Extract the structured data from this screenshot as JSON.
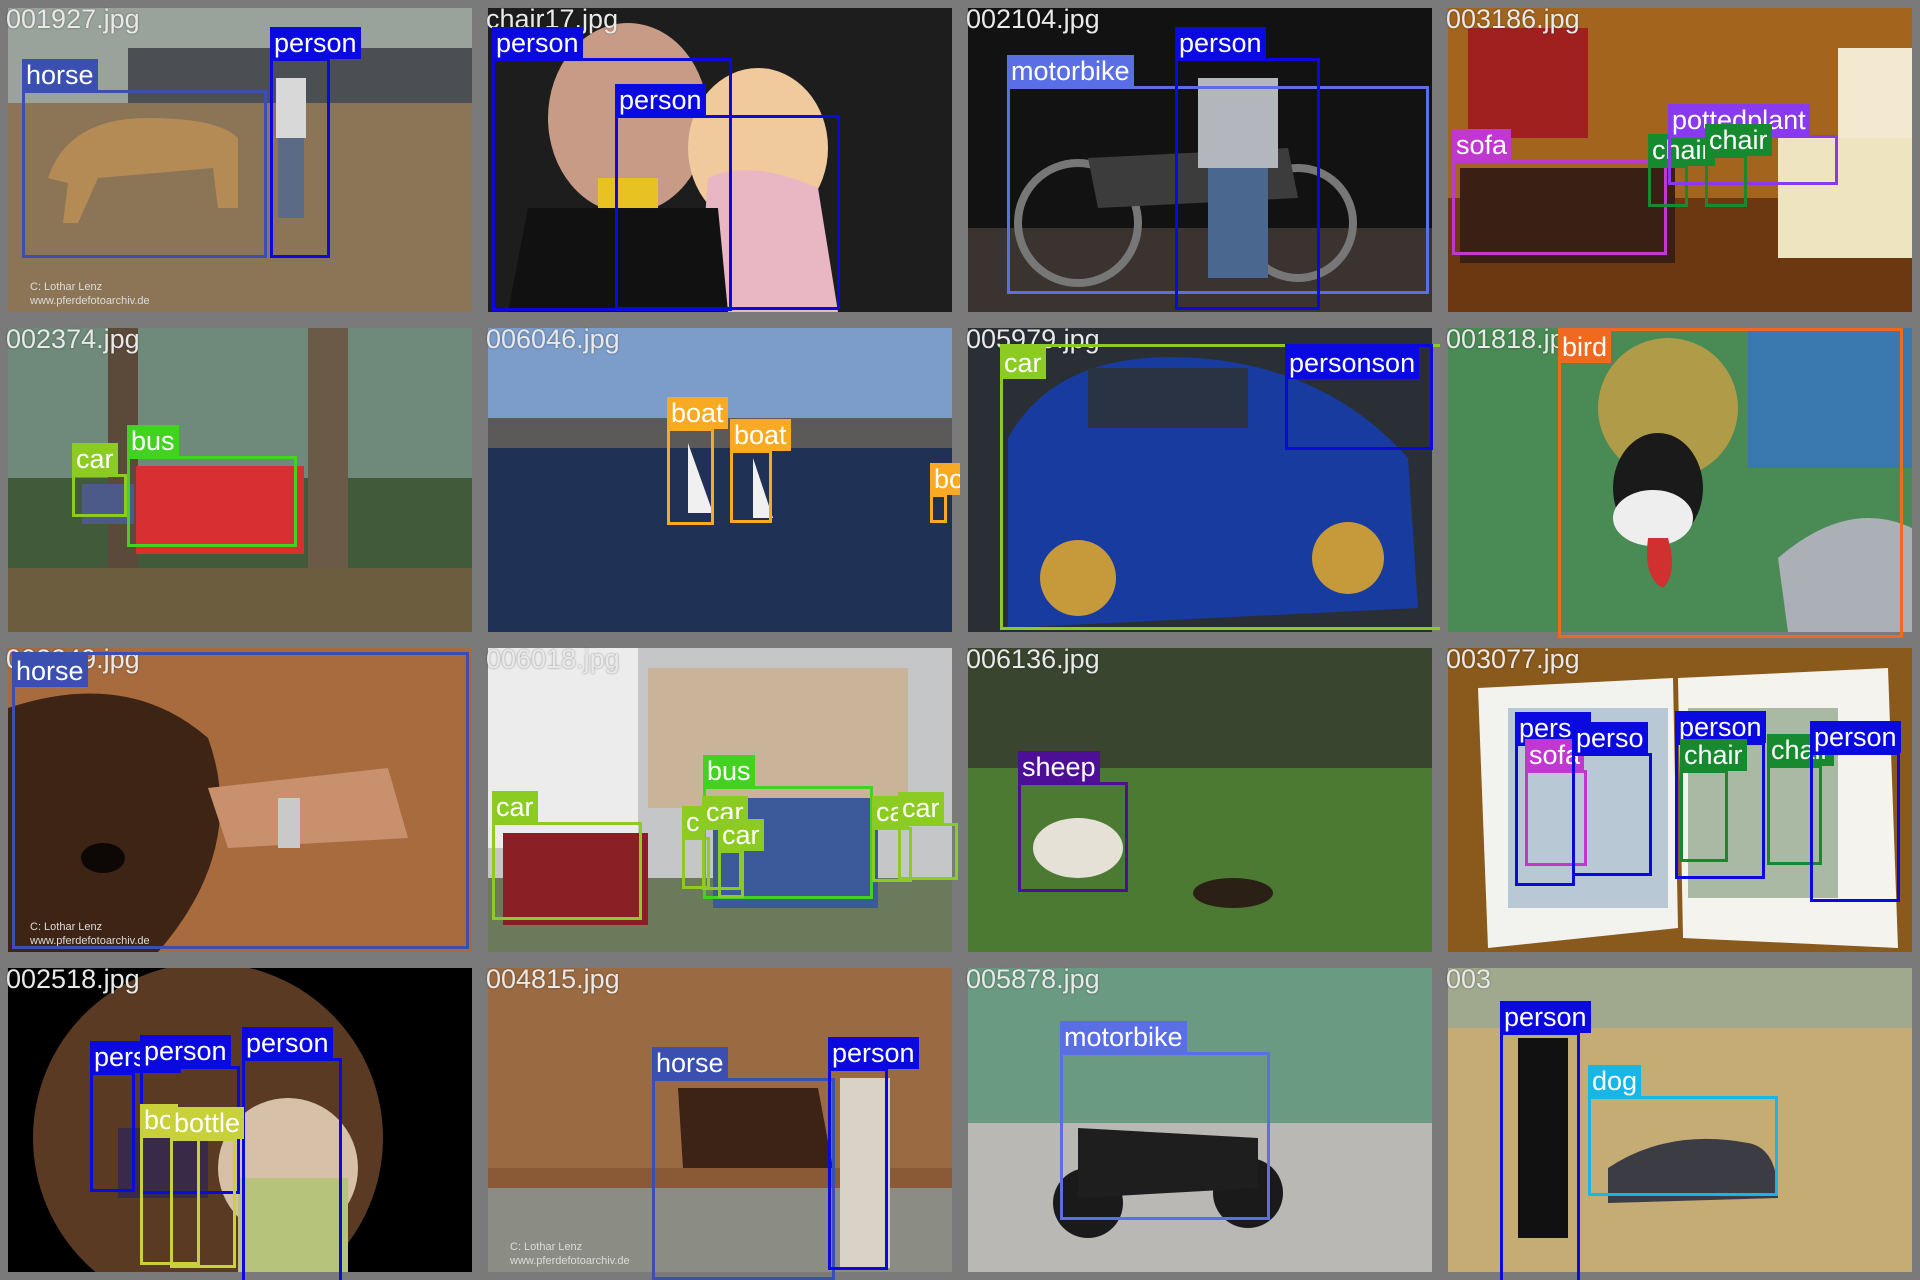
{
  "colors": {
    "person": "#0a0ae0",
    "horse": "#3a4fb0",
    "motorbike": "#5a6ee6",
    "sofa": "#c038d0",
    "chair": "#178a30",
    "pottedplant": "#8a3aee",
    "bus": "#44d222",
    "car": "#8ccc22",
    "boat": "#f7aa22",
    "bird": "#ef6a20",
    "sheep": "#4c0f96",
    "bottle": "#c8d03a",
    "dog": "#16b6e8"
  },
  "watermark": {
    "line1": "C:   Lothar Lenz",
    "line2": "www.pferdefotoarchiv.de"
  },
  "tiles": [
    {
      "filename": "001927.jpg",
      "scene": "horse-arena",
      "boxes": [
        {
          "label": "horse",
          "cls": "horse"
        },
        {
          "label": "person",
          "cls": "person"
        }
      ]
    },
    {
      "filename": "chair17.jpg",
      "scene": "man-child",
      "boxes": [
        {
          "label": "person",
          "cls": "person"
        },
        {
          "label": "person",
          "cls": "person"
        }
      ]
    },
    {
      "filename": "002104.jpg",
      "scene": "motorbike-night",
      "boxes": [
        {
          "label": "motorbike",
          "cls": "motorbike"
        },
        {
          "label": "person",
          "cls": "person"
        }
      ]
    },
    {
      "filename": "003186.jpg",
      "scene": "living-room",
      "boxes": [
        {
          "label": "sofa",
          "cls": "sofa"
        },
        {
          "label": "chair",
          "cls": "chair"
        },
        {
          "label": "pottedplant",
          "cls": "pottedplant"
        },
        {
          "label": "chair",
          "cls": "chair"
        }
      ]
    },
    {
      "filename": "002374.jpg",
      "scene": "forest-bus",
      "boxes": [
        {
          "label": "car",
          "cls": "car"
        },
        {
          "label": "bus",
          "cls": "bus"
        }
      ]
    },
    {
      "filename": "006046.jpg",
      "scene": "harbor",
      "boxes": [
        {
          "label": "boat",
          "cls": "boat"
        },
        {
          "label": "boat",
          "cls": "boat"
        },
        {
          "label": "boat",
          "cls": "boat"
        }
      ]
    },
    {
      "filename": "005979.jpg",
      "scene": "rally-car",
      "boxes": [
        {
          "label": "car",
          "cls": "car"
        },
        {
          "label": "personson",
          "cls": "person"
        }
      ]
    },
    {
      "filename": "001818.jpg",
      "scene": "crowned-crane",
      "boxes": [
        {
          "label": "bird",
          "cls": "bird"
        }
      ]
    },
    {
      "filename": "002249.jpg",
      "scene": "horse-closeup",
      "boxes": [
        {
          "label": "horse",
          "cls": "horse"
        }
      ]
    },
    {
      "filename": "006018.jpg",
      "scene": "street-bus",
      "boxes": [
        {
          "label": "car",
          "cls": "car"
        },
        {
          "label": "bus",
          "cls": "bus"
        },
        {
          "label": "c",
          "cls": "car"
        },
        {
          "label": "car",
          "cls": "car"
        },
        {
          "label": "car",
          "cls": "car"
        },
        {
          "label": "ca",
          "cls": "car"
        },
        {
          "label": "car",
          "cls": "car"
        }
      ]
    },
    {
      "filename": "006136.jpg",
      "scene": "sheep-field",
      "boxes": [
        {
          "label": "sheep",
          "cls": "sheep"
        }
      ]
    },
    {
      "filename": "003077.jpg",
      "scene": "book",
      "boxes": [
        {
          "label": "perso",
          "cls": "person"
        },
        {
          "label": "sofa",
          "cls": "sofa"
        },
        {
          "label": "perso",
          "cls": "person"
        },
        {
          "label": "person",
          "cls": "person"
        },
        {
          "label": "chair",
          "cls": "chair"
        },
        {
          "label": "chair",
          "cls": "chair"
        },
        {
          "label": "person",
          "cls": "person"
        }
      ]
    },
    {
      "filename": "002518.jpg",
      "scene": "fisheye-bar",
      "boxes": [
        {
          "label": "person",
          "cls": "person"
        },
        {
          "label": "person",
          "cls": "person"
        },
        {
          "label": "person",
          "cls": "person"
        },
        {
          "label": "bo",
          "cls": "bottle"
        },
        {
          "label": "bottle",
          "cls": "bottle"
        }
      ]
    },
    {
      "filename": "004815.jpg",
      "scene": "barn-horse",
      "boxes": [
        {
          "label": "horse",
          "cls": "horse"
        },
        {
          "label": "person",
          "cls": "person"
        }
      ]
    },
    {
      "filename": "005878.jpg",
      "scene": "street-motorbike",
      "boxes": [
        {
          "label": "motorbike",
          "cls": "motorbike"
        }
      ]
    },
    {
      "filename": "003",
      "scene": "dog-walk",
      "boxes": [
        {
          "label": "person",
          "cls": "person"
        },
        {
          "label": "dog",
          "cls": "dog"
        }
      ]
    }
  ]
}
